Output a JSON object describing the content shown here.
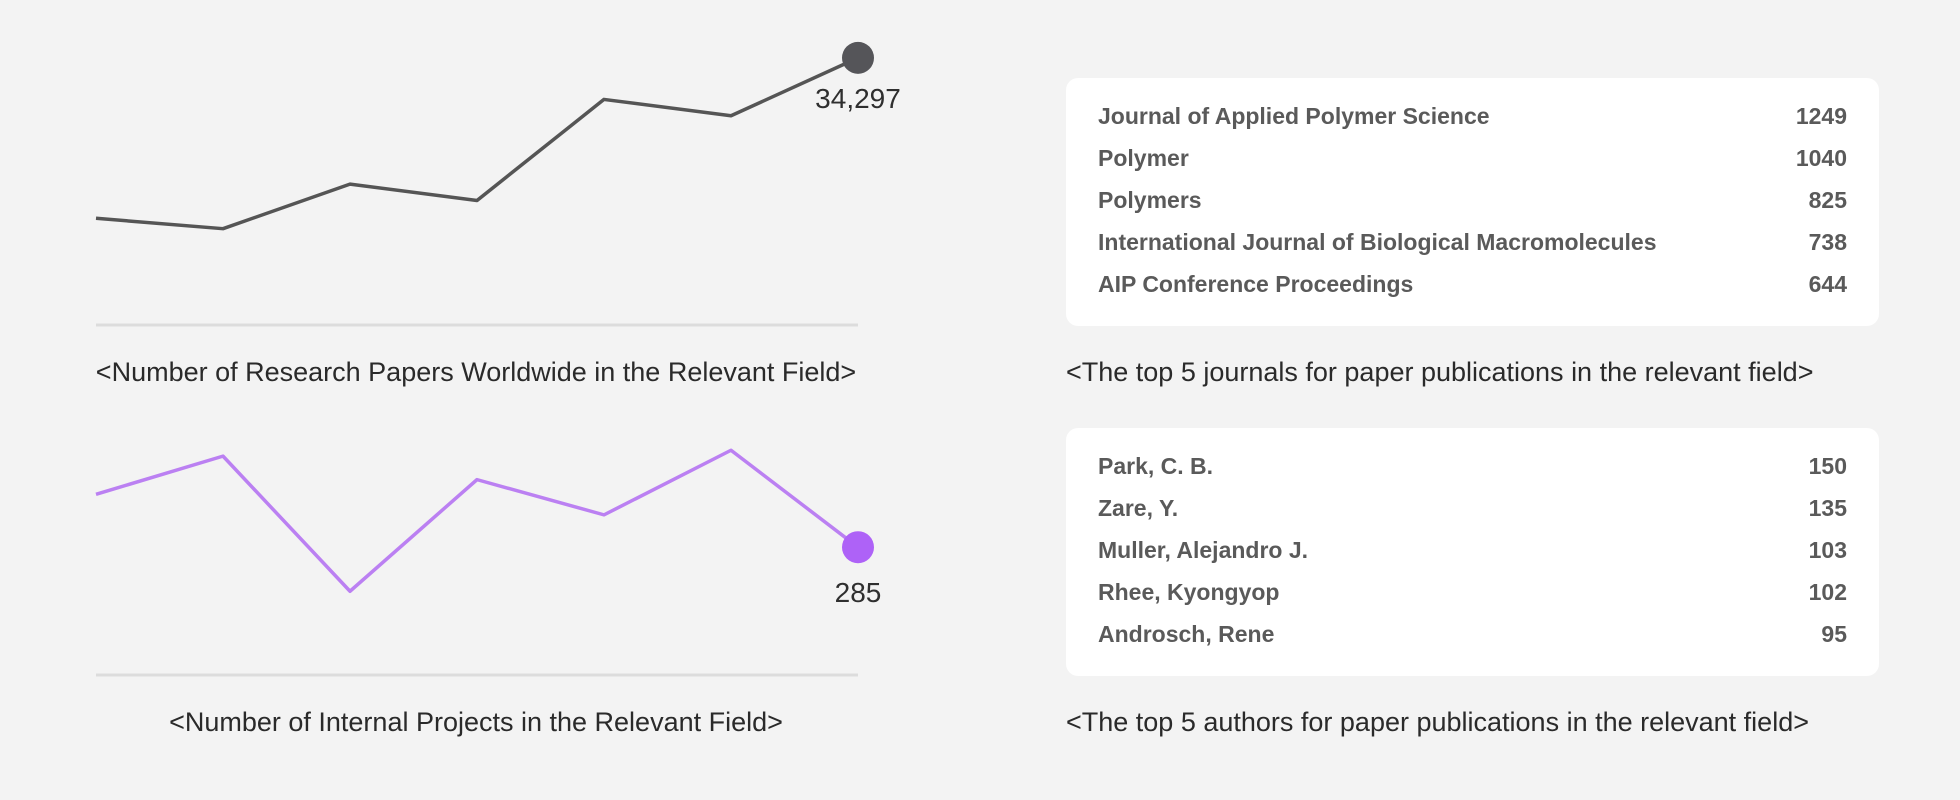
{
  "chart_data": [
    {
      "type": "line",
      "title": "<Number of Research Papers Worldwide in the Relevant Field>",
      "x": [
        1,
        2,
        3,
        4,
        5,
        6,
        7
      ],
      "values": [
        23500,
        22800,
        25800,
        24700,
        31500,
        30400,
        34297
      ],
      "ylim": [
        18000,
        35500
      ],
      "end_label": "34,297",
      "color": "#555555",
      "marker_color": "#555559"
    },
    {
      "type": "line",
      "title": "<Number of Internal Projects in the Relevant Field>",
      "x": [
        1,
        2,
        3,
        4,
        5,
        6,
        7
      ],
      "values": [
        303,
        316,
        270,
        308,
        296,
        318,
        285
      ],
      "ylim": [
        250,
        330
      ],
      "end_label": "285",
      "color": "#bb80f2",
      "marker_color": "#ae62f7"
    },
    {
      "type": "table",
      "title": "<The top 5 journals for paper publications in the relevant field>",
      "rows": [
        {
          "name": "Journal of Applied Polymer Science",
          "value": "1249"
        },
        {
          "name": "Polymer",
          "value": "1040"
        },
        {
          "name": "Polymers",
          "value": "825"
        },
        {
          "name": "International Journal of Biological Macromolecules",
          "value": "738"
        },
        {
          "name": "AIP Conference Proceedings",
          "value": "644"
        }
      ]
    },
    {
      "type": "table",
      "title": "<The top 5 authors for paper publications in the relevant field>",
      "rows": [
        {
          "name": "Park, C. B.",
          "value": "150"
        },
        {
          "name": "Zare, Y.",
          "value": "135"
        },
        {
          "name": "Muller, Alejandro J.",
          "value": "103"
        },
        {
          "name": "Rhee, Kyongyop",
          "value": "102"
        },
        {
          "name": "Androsch, Rene",
          "value": "95"
        }
      ]
    }
  ]
}
